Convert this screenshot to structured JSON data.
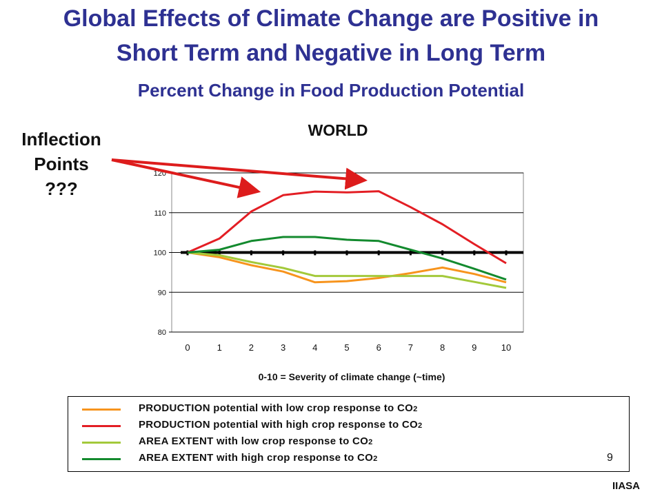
{
  "slide": {
    "title_line1": "Global Effects of Climate Change are Positive in",
    "title_line2": "Short Term and Negative in Long Term",
    "subtitle": "Percent Change in Food Production Potential",
    "annotation_lines": [
      "Inflection",
      "Points",
      "???"
    ],
    "annotation_color": "#dd1c1c",
    "page_number": "9",
    "footer_label": "IIASA",
    "title_color": "#2e3192"
  },
  "chart_data": {
    "type": "line",
    "title": "WORLD",
    "xlabel": "0-10 = Severity of climate change (~time)",
    "ylabel": "",
    "x": [
      0,
      1,
      2,
      3,
      4,
      5,
      6,
      7,
      8,
      9,
      10
    ],
    "xlim": [
      0,
      10
    ],
    "ylim": [
      80,
      120
    ],
    "yticks": [
      "80",
      "90",
      "100",
      "110",
      "120"
    ],
    "xticks": [
      "0",
      "1",
      "2",
      "3",
      "4",
      "5",
      "6",
      "7",
      "8",
      "9",
      "10"
    ],
    "grid": true,
    "reference_line": 100,
    "legend_position": "bottom",
    "series": [
      {
        "name": "PRODUCTION potential with low crop response to CO2",
        "label_main": "PRODUCTION potential with low crop response to CO",
        "label_sub": "2",
        "color": "#f7941d",
        "values": [
          100,
          98.8,
          96.8,
          95.2,
          92.5,
          92.8,
          93.6,
          94.8,
          96.2,
          94.6,
          92.5
        ]
      },
      {
        "name": "PRODUCTION potential with high crop response to CO2",
        "label_main": "PRODUCTION potential with high crop response to CO",
        "label_sub": "2",
        "color": "#e31e24",
        "values": [
          100,
          103.5,
          110.3,
          114.4,
          115.3,
          115.1,
          115.4,
          111.4,
          107.1,
          102.1,
          97.3
        ]
      },
      {
        "name": "AREA EXTENT with low crop response to CO2",
        "label_main": "AREA EXTENT with low crop response to CO",
        "label_sub": "2",
        "color": "#a3c93a",
        "values": [
          100,
          99.3,
          97.6,
          96.1,
          94.1,
          94.1,
          94.1,
          94.1,
          94.1,
          92.6,
          91.1
        ]
      },
      {
        "name": "AREA EXTENT with high crop response to CO2",
        "label_main": "AREA EXTENT with high crop response to CO",
        "label_sub": "2",
        "color": "#138a2e",
        "values": [
          100,
          100.7,
          102.9,
          103.9,
          103.9,
          103.2,
          102.9,
          100.7,
          98.5,
          95.9,
          93.2
        ]
      }
    ]
  }
}
